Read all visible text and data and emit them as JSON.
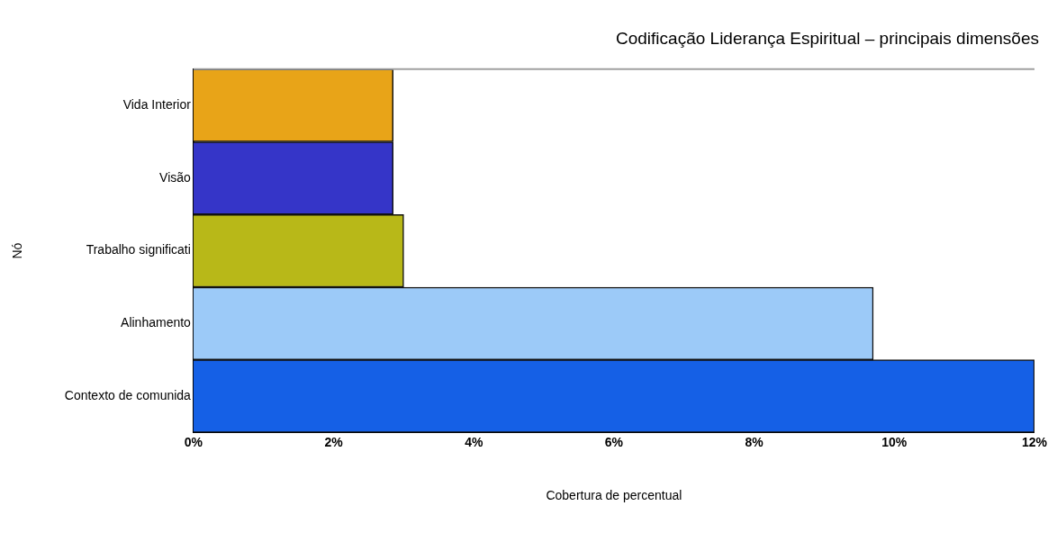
{
  "chart_data": {
    "type": "bar",
    "orientation": "horizontal",
    "title": "Codificação Liderança Espiritual – principais dimensões",
    "xlabel": "Cobertura de percentual",
    "ylabel": "Nó",
    "categories": [
      "Vida Interior",
      "Visão",
      "Trabalho significati",
      "Alinhamento",
      "Contexto de comunida"
    ],
    "values": [
      2.85,
      2.85,
      3.0,
      9.7,
      12.0
    ],
    "colors": [
      "#e8a418",
      "#3535c8",
      "#b8b818",
      "#9ccaf8",
      "#1560e6"
    ],
    "xlim": [
      0,
      12
    ],
    "xticks": [
      {
        "value": 0,
        "label": "0%"
      },
      {
        "value": 2,
        "label": "2%"
      },
      {
        "value": 4,
        "label": "4%"
      },
      {
        "value": 6,
        "label": "6%"
      },
      {
        "value": 8,
        "label": "8%"
      },
      {
        "value": 10,
        "label": "10%"
      },
      {
        "value": 12,
        "label": "12%"
      }
    ],
    "grid": false,
    "legend": false
  }
}
